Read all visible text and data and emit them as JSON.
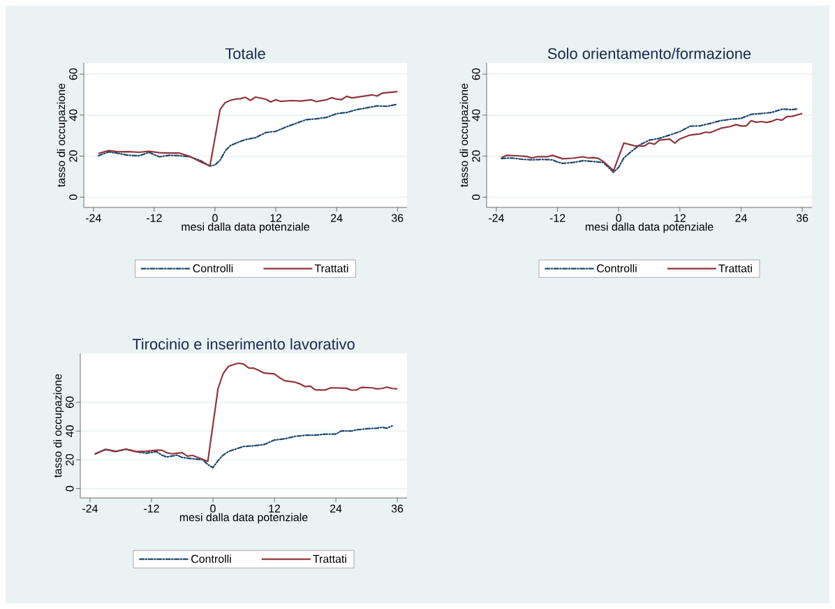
{
  "chart_data": [
    {
      "type": "line",
      "title": "Totale",
      "xlabel": "mesi dalla data potenziale",
      "ylabel": "tasso di occupazione",
      "xlim": [
        -25.9,
        37.9
      ],
      "ylim": [
        -5,
        65.5
      ],
      "xticks": [
        -24,
        -12,
        0,
        12,
        24,
        36
      ],
      "yticks": [
        0,
        20,
        40,
        60
      ],
      "grid": "y",
      "legend": "bottom",
      "series": [
        {
          "name": "Controlli",
          "color": "#1a476f",
          "line_style": "dashed",
          "x": [
            -23,
            -21,
            -19,
            -17,
            -15,
            -13,
            -11,
            -9,
            -7,
            -5,
            -3,
            -1,
            0,
            1,
            2,
            3,
            4,
            6,
            8,
            10,
            12,
            14,
            16,
            18,
            20,
            22,
            24,
            26,
            28,
            30,
            32,
            34,
            36
          ],
          "values": [
            20.2,
            22.1,
            21.3,
            20.4,
            20.2,
            21.8,
            19.7,
            20.4,
            20.2,
            19.7,
            18.0,
            15.2,
            15.7,
            18.0,
            22.5,
            25.1,
            26.2,
            28.1,
            29.0,
            31.5,
            32.1,
            34.2,
            36.0,
            37.8,
            38.2,
            38.9,
            40.7,
            41.3,
            42.7,
            43.6,
            44.5,
            44.3,
            45.3
          ]
        },
        {
          "name": "Trattati",
          "color": "#90353b",
          "line_style": "solid",
          "x": [
            -23,
            -21,
            -19,
            -17,
            -15,
            -13,
            -11,
            -9,
            -7,
            -5,
            -3,
            -1,
            1,
            2,
            3,
            4,
            5,
            6,
            7,
            8,
            10,
            11,
            12,
            13,
            15,
            17,
            19,
            20,
            22,
            23,
            24,
            25,
            26,
            27,
            29,
            31,
            32,
            33,
            36
          ],
          "values": [
            21.3,
            22.7,
            22.1,
            22.2,
            21.9,
            22.4,
            21.7,
            21.5,
            21.5,
            19.9,
            17.4,
            15.2,
            42.7,
            46.1,
            47.2,
            47.8,
            48.0,
            48.7,
            47.2,
            48.8,
            47.8,
            46.4,
            47.5,
            46.7,
            47.1,
            46.9,
            47.5,
            46.6,
            47.5,
            48.5,
            47.8,
            47.6,
            49.2,
            48.4,
            49.1,
            49.9,
            49.3,
            50.7,
            51.5
          ]
        }
      ]
    },
    {
      "type": "line",
      "title": "Solo orientamento/formazione",
      "xlabel": "mesi dalla data potenziale",
      "ylabel": "tasso di occupazione",
      "xlim": [
        -25.9,
        37.9
      ],
      "ylim": [
        -5,
        65.5
      ],
      "xticks": [
        -24,
        -12,
        0,
        12,
        24,
        36
      ],
      "yticks": [
        0,
        20,
        40,
        60
      ],
      "grid": "y",
      "legend": "bottom",
      "series": [
        {
          "name": "Controlli",
          "color": "#1a476f",
          "line_style": "dashed",
          "x": [
            -23,
            -21,
            -19,
            -17,
            -15,
            -13,
            -12,
            -11,
            -9,
            -7,
            -5,
            -3,
            -1,
            0,
            1,
            2,
            4,
            6,
            8,
            10,
            12,
            14,
            16,
            18,
            20,
            22,
            24,
            26,
            28,
            30,
            32,
            34,
            35
          ],
          "values": [
            18.9,
            19.1,
            18.5,
            18.2,
            18.4,
            18.2,
            17.1,
            16.5,
            16.9,
            17.8,
            17.4,
            16.9,
            12.1,
            14.6,
            19.1,
            21.3,
            25.3,
            27.8,
            28.7,
            30.3,
            32.0,
            34.6,
            34.8,
            36.0,
            37.3,
            38.0,
            38.4,
            40.4,
            40.8,
            41.3,
            42.9,
            42.7,
            43.0
          ]
        },
        {
          "name": "Trattati",
          "color": "#90353b",
          "line_style": "solid",
          "x": [
            -23,
            -22,
            -20,
            -18,
            -17,
            -16,
            -14,
            -13,
            -11,
            -9,
            -7,
            -6,
            -5,
            -4,
            -3,
            -1,
            1,
            3,
            5,
            6,
            7,
            8,
            10,
            11,
            12,
            14,
            16,
            17,
            18,
            20,
            22,
            23,
            24,
            25,
            26,
            27,
            28,
            29,
            30,
            31,
            32,
            33,
            34,
            36
          ],
          "values": [
            19.3,
            20.4,
            20.2,
            19.8,
            19.1,
            19.7,
            19.7,
            20.4,
            18.7,
            19.0,
            19.7,
            19.1,
            19.3,
            18.9,
            17.4,
            12.9,
            26.4,
            25.1,
            24.9,
            26.5,
            25.8,
            27.8,
            28.3,
            26.4,
            28.4,
            30.3,
            30.9,
            31.7,
            31.5,
            33.6,
            34.5,
            35.4,
            34.7,
            34.7,
            37.3,
            36.5,
            36.9,
            36.4,
            37.0,
            38.0,
            37.5,
            39.3,
            39.4,
            40.8
          ]
        }
      ]
    },
    {
      "type": "line",
      "title": "Tirocinio e inserimento lavorativo",
      "xlabel": "mesi dalla data potenziale",
      "ylabel": "tasso di occupazione",
      "xlim": [
        -25.9,
        37.9
      ],
      "ylim": [
        -6.5,
        94
      ],
      "xticks": [
        -24,
        -12,
        0,
        12,
        24,
        36
      ],
      "yticks": [
        0,
        20,
        40,
        60
      ],
      "grid": "y",
      "legend": "bottom",
      "series": [
        {
          "name": "Controlli",
          "color": "#1a476f",
          "line_style": "dashed",
          "x": [
            -23,
            -21,
            -19,
            -17,
            -15,
            -13,
            -11,
            -10,
            -9,
            -7,
            -6,
            -4,
            -2,
            -1,
            0,
            1,
            2,
            3,
            4,
            6,
            8,
            10,
            11,
            12,
            14,
            16,
            18,
            20,
            22,
            24,
            25,
            27,
            28,
            30,
            32,
            33,
            34,
            35
          ],
          "values": [
            24.1,
            27.3,
            25.7,
            27.3,
            25.7,
            24.6,
            25.7,
            23.3,
            22.0,
            23.3,
            21.6,
            20.8,
            20.0,
            16.7,
            14.6,
            19.5,
            23.3,
            25.7,
            27.0,
            29.3,
            29.8,
            30.6,
            32.2,
            33.8,
            34.6,
            36.3,
            37.1,
            37.1,
            37.9,
            37.9,
            40.0,
            40.0,
            40.8,
            41.6,
            42.0,
            42.6,
            42.0,
            43.6
          ]
        },
        {
          "name": "Trattati",
          "color": "#90353b",
          "line_style": "solid",
          "x": [
            -23,
            -22,
            -21,
            -20,
            -19,
            -18,
            -17,
            -16,
            -15,
            -13,
            -11,
            -10,
            -9,
            -8,
            -6,
            -5,
            -4,
            -2,
            -1,
            1,
            2,
            3,
            4,
            5,
            6,
            7,
            8,
            9,
            10,
            12,
            13,
            14,
            16,
            17,
            18,
            19,
            20,
            22,
            23,
            26,
            27,
            28,
            29,
            31,
            32,
            33,
            34,
            35,
            36
          ],
          "values": [
            24.1,
            25.7,
            27.0,
            26.7,
            25.9,
            26.7,
            27.5,
            26.7,
            25.7,
            26.0,
            26.7,
            26.7,
            24.9,
            24.2,
            25.0,
            22.6,
            23.1,
            20.3,
            18.9,
            69.6,
            80.0,
            84.9,
            86.2,
            87.2,
            86.5,
            83.9,
            83.7,
            82.1,
            80.3,
            79.7,
            77.1,
            75.0,
            74.0,
            72.8,
            70.9,
            71.2,
            68.6,
            68.6,
            70.1,
            69.8,
            68.5,
            68.5,
            70.4,
            70.1,
            69.3,
            69.6,
            70.6,
            69.6,
            69.3
          ]
        }
      ]
    }
  ]
}
